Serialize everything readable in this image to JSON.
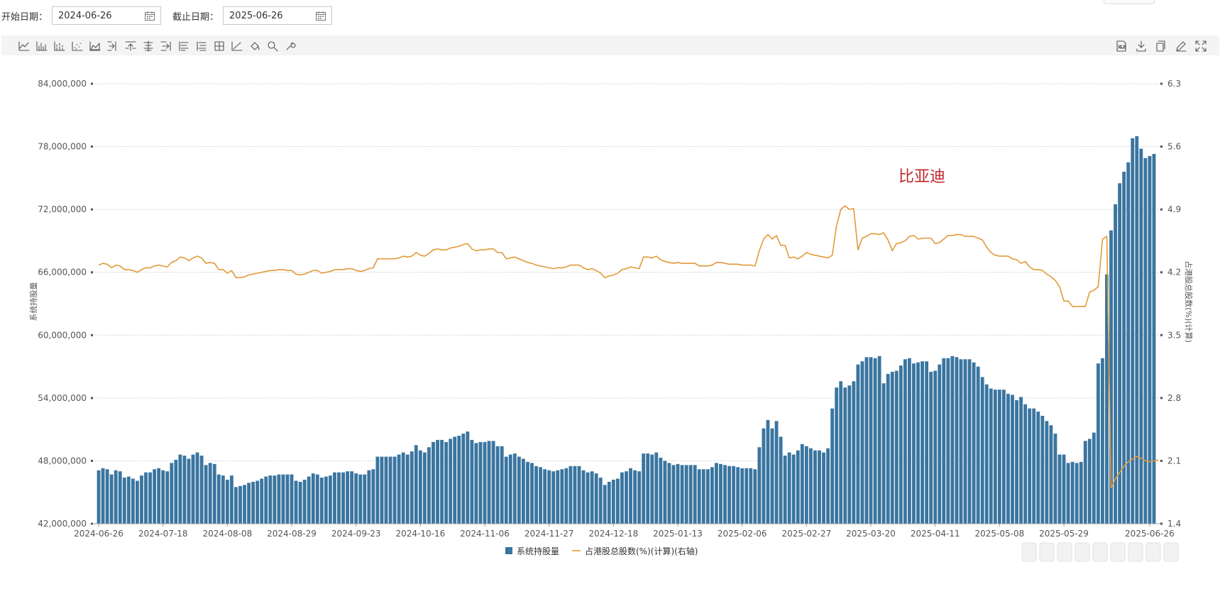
{
  "filters": {
    "start_label": "开始日期：",
    "start_value": "2024-06-26",
    "end_label": "截止日期：",
    "end_value": "2025-06-26"
  },
  "toolbar": {
    "left_icons": [
      "line-chart-icon",
      "bar-chart-icon",
      "stacked-bar-icon",
      "scatter-icon",
      "area-chart-icon",
      "step-in-icon",
      "align-top-icon",
      "list-align-icon",
      "step-right-icon",
      "list-icon",
      "list-indent-icon",
      "grid-box-icon",
      "axis-line-icon",
      "fill-bucket-icon",
      "zoom-search-icon",
      "wrench-icon"
    ],
    "right_icons": [
      "xls-export-icon",
      "download-icon",
      "copy-icon",
      "edit-icon",
      "fullscreen-icon"
    ]
  },
  "colors": {
    "bar": "#3a75a0",
    "line": "#e29a38",
    "annotation": "#c0282d",
    "grid": "#cfcfcf",
    "axis_text": "#555555"
  },
  "chart_data": {
    "type": "bar",
    "annotation": "比亚迪",
    "ylabel": "系统持股量",
    "ylabel_right": "占港股总股数(%)(计算)",
    "ylim": [
      42000000,
      84000000
    ],
    "ylim_right": [
      1.4,
      6.3
    ],
    "y_ticks": [
      "84,000,000",
      "78,000,000",
      "72,000,000",
      "66,000,000",
      "60,000,000",
      "54,000,000",
      "48,000,000",
      "42,000,000"
    ],
    "y_ticks_right": [
      "6.3",
      "5.6",
      "4.9",
      "4.2",
      "3.5",
      "2.8",
      "2.1",
      "1.4"
    ],
    "x_tick_labels": [
      "2024-06-26",
      "2024-07-18",
      "2024-08-08",
      "2024-08-29",
      "2024-09-23",
      "2024-10-16",
      "2024-11-06",
      "2024-11-27",
      "2024-12-18",
      "2025-01-13",
      "2025-02-06",
      "2025-02-27",
      "2025-03-20",
      "2025-04-11",
      "2025-05-08",
      "2025-05-29",
      "2025-06-26"
    ],
    "x_tick_index": [
      0,
      15,
      30,
      45,
      60,
      75,
      90,
      105,
      120,
      135,
      150,
      165,
      180,
      195,
      210,
      225,
      245
    ],
    "legend": [
      {
        "name": "系统持股量",
        "kind": "bar"
      },
      {
        "name": "占港股总股数(%)(计算)(右轴)",
        "kind": "line"
      }
    ],
    "series": [
      {
        "name": "系统持股量",
        "axis": "left",
        "values": [
          47.1,
          47.3,
          47.2,
          46.7,
          47.1,
          47.0,
          46.4,
          46.5,
          46.3,
          46.1,
          46.6,
          46.9,
          46.9,
          47.2,
          47.3,
          47.1,
          47.0,
          47.8,
          48.1,
          48.6,
          48.5,
          48.2,
          48.6,
          48.8,
          48.5,
          47.6,
          47.8,
          47.7,
          46.7,
          46.6,
          46.2,
          46.6,
          45.5,
          45.6,
          45.7,
          45.9,
          46.0,
          46.1,
          46.3,
          46.5,
          46.6,
          46.6,
          46.7,
          46.7,
          46.7,
          46.7,
          46.1,
          46.0,
          46.2,
          46.5,
          46.8,
          46.7,
          46.4,
          46.5,
          46.6,
          46.9,
          46.9,
          46.9,
          47.0,
          47.0,
          46.8,
          46.7,
          46.7,
          47.1,
          47.2,
          48.4,
          48.4,
          48.4,
          48.4,
          48.4,
          48.6,
          48.8,
          48.6,
          48.9,
          49.5,
          49.0,
          48.8,
          49.3,
          49.8,
          50.0,
          50.0,
          49.8,
          50.1,
          50.3,
          50.4,
          50.6,
          50.8,
          50.0,
          49.7,
          49.8,
          49.8,
          49.9,
          49.9,
          49.4,
          49.4,
          48.4,
          48.6,
          48.7,
          48.4,
          48.2,
          47.9,
          47.8,
          47.5,
          47.4,
          47.2,
          47.1,
          47.0,
          47.1,
          47.2,
          47.3,
          47.5,
          47.5,
          47.5,
          47.1,
          46.9,
          47.0,
          46.8,
          46.4,
          45.7,
          46.0,
          46.2,
          46.3,
          46.9,
          47.0,
          47.3,
          47.1,
          47.0,
          48.7,
          48.7,
          48.6,
          48.8,
          48.3,
          48.0,
          47.8,
          47.6,
          47.7,
          47.6,
          47.6,
          47.6,
          47.6,
          47.2,
          47.2,
          47.2,
          47.4,
          47.8,
          47.7,
          47.6,
          47.5,
          47.5,
          47.4,
          47.3,
          47.3,
          47.3,
          47.2,
          49.3,
          51.1,
          51.9,
          51.1,
          51.8,
          50.3,
          48.5,
          48.8,
          48.6,
          49.0,
          49.6,
          49.4,
          49.2,
          49.0,
          49.0,
          48.8,
          49.2,
          53.0,
          55.0,
          55.6,
          55.0,
          55.2,
          55.6,
          57.2,
          57.5,
          57.9,
          57.9,
          57.8,
          58.0,
          55.4,
          56.3,
          56.5,
          56.6,
          57.1,
          57.7,
          57.8,
          57.3,
          57.4,
          57.5,
          57.5,
          56.5,
          56.6,
          57.2,
          57.8,
          57.8,
          58.0,
          57.9,
          57.7,
          57.7,
          57.7,
          57.4,
          57.0,
          56.0,
          55.3,
          54.9,
          54.8,
          54.8,
          54.8,
          54.4,
          54.3,
          53.8,
          54.1,
          53.4,
          53.0,
          53.0,
          52.7,
          52.3,
          51.8,
          51.4,
          50.6,
          48.6,
          48.6,
          47.8,
          47.9,
          47.8,
          47.9,
          49.9,
          50.1,
          50.7,
          57.3,
          57.8,
          65.8,
          70.0,
          72.5,
          74.5,
          75.6,
          76.5,
          78.8,
          79.0,
          77.8,
          76.9,
          77.1,
          77.3
        ]
      },
      {
        "name": "占港股总股数(%)(计算)",
        "axis": "right",
        "values": [
          4.28,
          4.3,
          4.29,
          4.25,
          4.28,
          4.27,
          4.23,
          4.23,
          4.22,
          4.2,
          4.23,
          4.25,
          4.25,
          4.27,
          4.28,
          4.27,
          4.26,
          4.31,
          4.33,
          4.37,
          4.36,
          4.33,
          4.36,
          4.38,
          4.36,
          4.3,
          4.31,
          4.3,
          4.23,
          4.23,
          4.19,
          4.22,
          4.14,
          4.14,
          4.15,
          4.17,
          4.18,
          4.19,
          4.2,
          4.21,
          4.22,
          4.22,
          4.23,
          4.23,
          4.22,
          4.22,
          4.18,
          4.17,
          4.18,
          4.2,
          4.22,
          4.22,
          4.19,
          4.2,
          4.21,
          4.23,
          4.23,
          4.23,
          4.24,
          4.24,
          4.22,
          4.21,
          4.22,
          4.24,
          4.25,
          4.35,
          4.35,
          4.35,
          4.35,
          4.35,
          4.36,
          4.38,
          4.37,
          4.38,
          4.42,
          4.39,
          4.38,
          4.41,
          4.45,
          4.46,
          4.45,
          4.45,
          4.47,
          4.48,
          4.49,
          4.51,
          4.52,
          4.46,
          4.44,
          4.45,
          4.45,
          4.46,
          4.46,
          4.42,
          4.42,
          4.35,
          4.36,
          4.37,
          4.35,
          4.33,
          4.31,
          4.3,
          4.28,
          4.27,
          4.26,
          4.25,
          4.24,
          4.25,
          4.25,
          4.26,
          4.28,
          4.28,
          4.28,
          4.25,
          4.23,
          4.24,
          4.22,
          4.19,
          4.14,
          4.16,
          4.17,
          4.19,
          4.23,
          4.24,
          4.26,
          4.25,
          4.24,
          4.37,
          4.37,
          4.36,
          4.38,
          4.34,
          4.32,
          4.31,
          4.3,
          4.31,
          4.3,
          4.3,
          4.3,
          4.3,
          4.27,
          4.27,
          4.27,
          4.28,
          4.31,
          4.31,
          4.3,
          4.29,
          4.29,
          4.29,
          4.28,
          4.28,
          4.28,
          4.27,
          4.44,
          4.57,
          4.62,
          4.57,
          4.61,
          4.5,
          4.5,
          4.36,
          4.37,
          4.35,
          4.38,
          4.42,
          4.4,
          4.39,
          4.38,
          4.37,
          4.36,
          4.39,
          4.72,
          4.9,
          4.94,
          4.9,
          4.91,
          4.45,
          4.58,
          4.6,
          4.63,
          4.63,
          4.62,
          4.64,
          4.56,
          4.44,
          4.52,
          4.53,
          4.55,
          4.6,
          4.61,
          4.57,
          4.58,
          4.58,
          4.58,
          4.52,
          4.53,
          4.57,
          4.61,
          4.61,
          4.62,
          4.62,
          4.6,
          4.6,
          4.6,
          4.58,
          4.56,
          4.48,
          4.42,
          4.39,
          4.38,
          4.38,
          4.38,
          4.35,
          4.34,
          4.3,
          4.32,
          4.26,
          4.23,
          4.23,
          4.22,
          4.18,
          4.15,
          4.11,
          4.04,
          3.88,
          3.88,
          3.82,
          3.82,
          3.82,
          3.82,
          3.98,
          4.0,
          4.04,
          4.57,
          4.6,
          1.8,
          1.9,
          1.97,
          2.04,
          2.09,
          2.12,
          2.15,
          2.13,
          2.1,
          2.09,
          2.1,
          2.11
        ]
      }
    ],
    "grid": true,
    "legend_position": "bottom-center"
  }
}
